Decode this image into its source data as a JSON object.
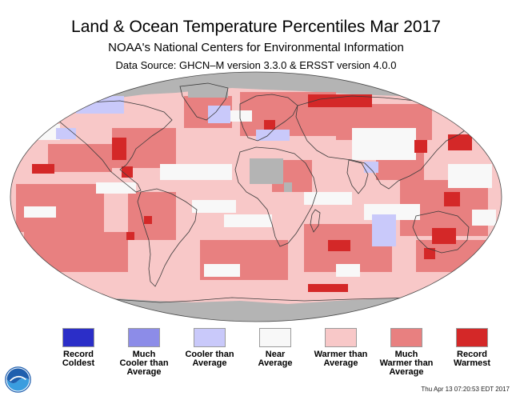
{
  "title": "Land & Ocean Temperature Percentiles Mar 2017",
  "subtitle": "NOAA's National Centers for Environmental Information",
  "source": "Data Source: GHCN–M version 3.3.0 & ERSST version 4.0.0",
  "legend": [
    {
      "label1": "Record",
      "label2": "Coldest",
      "label3": "",
      "color": "#2b2ec8"
    },
    {
      "label1": "Much",
      "label2": "Cooler than",
      "label3": "Average",
      "color": "#8c8ce8"
    },
    {
      "label1": "Cooler than",
      "label2": "Average",
      "label3": "",
      "color": "#c9c9fa"
    },
    {
      "label1": "Near",
      "label2": "Average",
      "label3": "",
      "color": "#f8f8f8"
    },
    {
      "label1": "Warmer than",
      "label2": "Average",
      "label3": "",
      "color": "#f8c8c8"
    },
    {
      "label1": "Much",
      "label2": "Warmer than",
      "label3": "Average",
      "color": "#e88080"
    },
    {
      "label1": "Record",
      "label2": "Warmest",
      "label3": "",
      "color": "#d42828"
    }
  ],
  "colors": {
    "no_data": "#b4b4b4",
    "near_average": "#f8f8f8",
    "warmer": "#f8c8c8",
    "much_warmer": "#e88080",
    "record_warmest": "#d42828",
    "cooler": "#c9c9fa",
    "much_cooler": "#8c8ce8",
    "land_outline": "#3a3a3a"
  },
  "timestamp": "Thu Apr 13 07:20:53 EDT 2017",
  "logo_icon": "noaa-logo-icon"
}
